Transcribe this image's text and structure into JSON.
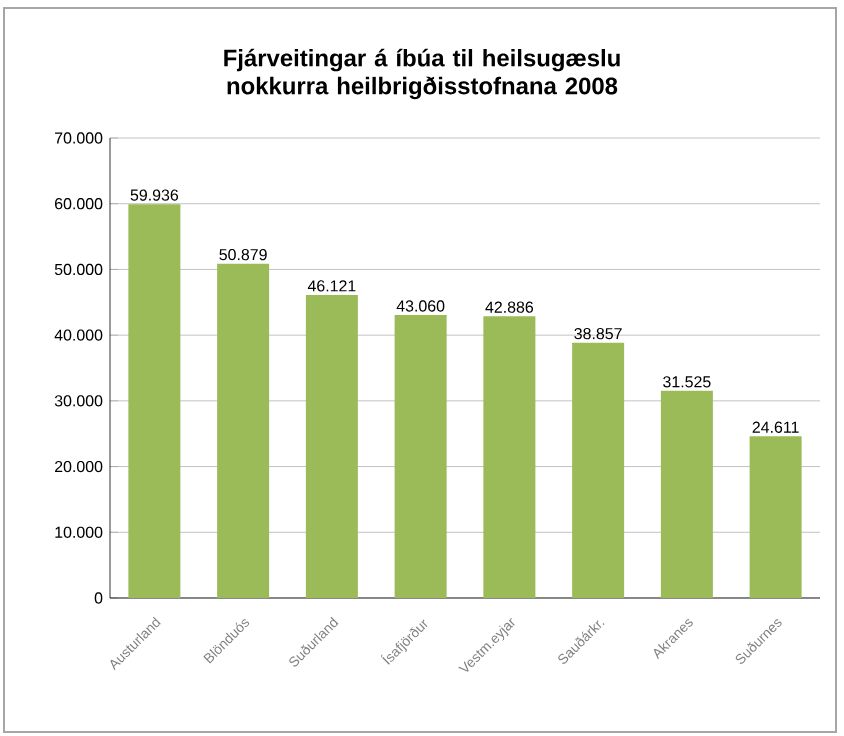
{
  "chart_data": {
    "type": "bar",
    "title": "Fjárveitingar á íbúa til heilsugæslu nokkurra heilbrigðisstofnana 2008",
    "categories": [
      "Austurland",
      "Blönduós",
      "Suðurland",
      "Ísafjörður",
      "Vestm.eyjar",
      "Sauðárkr.",
      "Akranes",
      "Suðurnes"
    ],
    "values": [
      59936,
      50879,
      46121,
      43060,
      42886,
      38857,
      31525,
      24611
    ],
    "value_labels": [
      "59.936",
      "50.879",
      "46.121",
      "43.060",
      "42.886",
      "38.857",
      "31.525",
      "24.611"
    ],
    "color": "#9bbb59",
    "ylim": [
      0,
      70000
    ],
    "yticks": [
      0,
      {
        "value": 10000,
        "label": "10.000"
      },
      {
        "value": 20000,
        "label": "20.000"
      },
      {
        "value": 30000,
        "label": "30.000"
      },
      {
        "value": 40000,
        "label": "40.000"
      },
      {
        "value": 50000,
        "label": "50.000"
      },
      {
        "value": 60000,
        "label": "60.000"
      },
      {
        "value": 70000,
        "label": "70.000"
      }
    ],
    "grid": "y"
  }
}
